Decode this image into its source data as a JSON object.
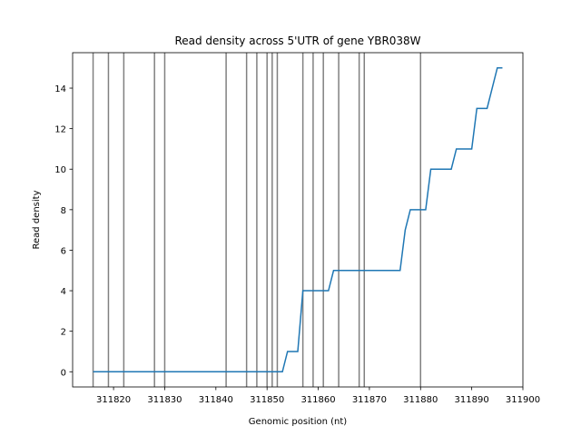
{
  "chart_data": {
    "type": "line",
    "title": "Read density across 5'UTR of gene YBR038W",
    "x_label": "Genomic position (nt)",
    "y_label": "Read density",
    "x": [
      311816,
      311852,
      311853,
      311854,
      311856,
      311857,
      311862,
      311863,
      311876,
      311877,
      311878,
      311881,
      311882,
      311886,
      311887,
      311890,
      311891,
      311893,
      311895,
      311896
    ],
    "series": [
      {
        "color": "#1f77b4",
        "values": [
          0,
          0,
          0,
          1,
          1,
          4,
          4,
          5,
          5,
          7,
          8,
          8,
          10,
          10,
          11,
          11,
          13,
          13,
          15,
          15
        ]
      }
    ],
    "vlines": [
      311816,
      311819,
      311822,
      311828,
      311830,
      311842,
      311846,
      311848,
      311850,
      311851,
      311852,
      311857,
      311859,
      311861,
      311864,
      311868,
      311869,
      311880
    ],
    "vline_color": "#808080",
    "xlim": [
      311812,
      311900
    ],
    "ylim": [
      -0.75,
      15.75
    ],
    "xticks": [
      311820,
      311830,
      311840,
      311850,
      311860,
      311870,
      311880,
      311890,
      311900
    ],
    "yticks": [
      0,
      2,
      4,
      6,
      8,
      10,
      12,
      14
    ]
  }
}
